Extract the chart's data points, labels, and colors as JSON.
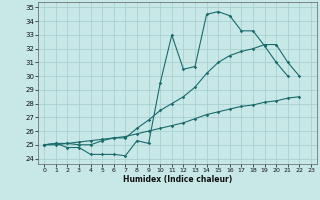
{
  "bg_color": "#c8e8e8",
  "grid_color": "#a8d0d0",
  "line_color": "#1a6b6b",
  "xlabel": "Humidex (Indice chaleur)",
  "ylim": [
    23.6,
    35.4
  ],
  "xlim": [
    -0.5,
    23.5
  ],
  "yticks": [
    24,
    25,
    26,
    27,
    28,
    29,
    30,
    31,
    32,
    33,
    34,
    35
  ],
  "xticks": [
    0,
    1,
    2,
    3,
    4,
    5,
    6,
    7,
    8,
    9,
    10,
    11,
    12,
    13,
    14,
    15,
    16,
    17,
    18,
    19,
    20,
    21,
    22,
    23
  ],
  "line1_x": [
    0,
    1,
    2,
    3,
    4,
    5,
    6,
    7,
    8,
    9,
    10,
    11,
    12,
    13,
    14,
    15,
    16,
    17,
    18,
    19,
    20,
    21
  ],
  "line1_y": [
    25.0,
    25.1,
    24.8,
    24.8,
    24.3,
    24.3,
    24.3,
    24.2,
    25.3,
    25.1,
    29.5,
    33.0,
    30.5,
    30.7,
    34.5,
    34.7,
    34.4,
    33.3,
    33.3,
    32.2,
    31.0,
    30.0
  ],
  "line2_x": [
    0,
    1,
    2,
    3,
    4,
    5,
    6,
    7,
    8,
    9,
    10,
    11,
    12,
    13,
    14,
    15,
    16,
    17,
    18,
    19,
    20,
    21,
    22
  ],
  "line2_y": [
    25.0,
    25.1,
    25.1,
    25.0,
    25.0,
    25.3,
    25.5,
    25.5,
    26.2,
    26.8,
    27.5,
    28.0,
    28.5,
    29.2,
    30.2,
    31.0,
    31.5,
    31.8,
    32.0,
    32.3,
    32.3,
    31.0,
    30.0
  ],
  "line3_x": [
    0,
    1,
    2,
    3,
    4,
    5,
    6,
    7,
    8,
    9,
    10,
    11,
    12,
    13,
    14,
    15,
    16,
    17,
    18,
    19,
    20,
    21,
    22
  ],
  "line3_y": [
    25.0,
    25.0,
    25.1,
    25.2,
    25.3,
    25.4,
    25.5,
    25.6,
    25.8,
    26.0,
    26.2,
    26.4,
    26.6,
    26.9,
    27.2,
    27.4,
    27.6,
    27.8,
    27.9,
    28.1,
    28.2,
    28.4,
    28.5
  ]
}
